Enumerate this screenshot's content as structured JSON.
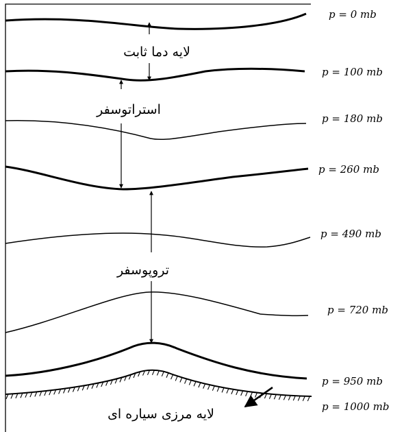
{
  "layers": {
    "isothermal": "لایه دما ثابت",
    "stratosphere": "استراتوسفر",
    "troposphere": "تروپوسفر",
    "boundary": "لایه مرزی سیاره ای"
  },
  "pressure_levels": [
    {
      "label": "p = 0 mb",
      "value": 0
    },
    {
      "label": "p = 100 mb",
      "value": 100
    },
    {
      "label": "p = 180 mb",
      "value": 180
    },
    {
      "label": "p = 260 mb",
      "value": 260
    },
    {
      "label": "p = 490 mb",
      "value": 490
    },
    {
      "label": "p = 720 mb",
      "value": 720
    },
    {
      "label": "p = 950 mb",
      "value": 950
    },
    {
      "label": "p = 1000 mb",
      "value": 1000
    }
  ]
}
